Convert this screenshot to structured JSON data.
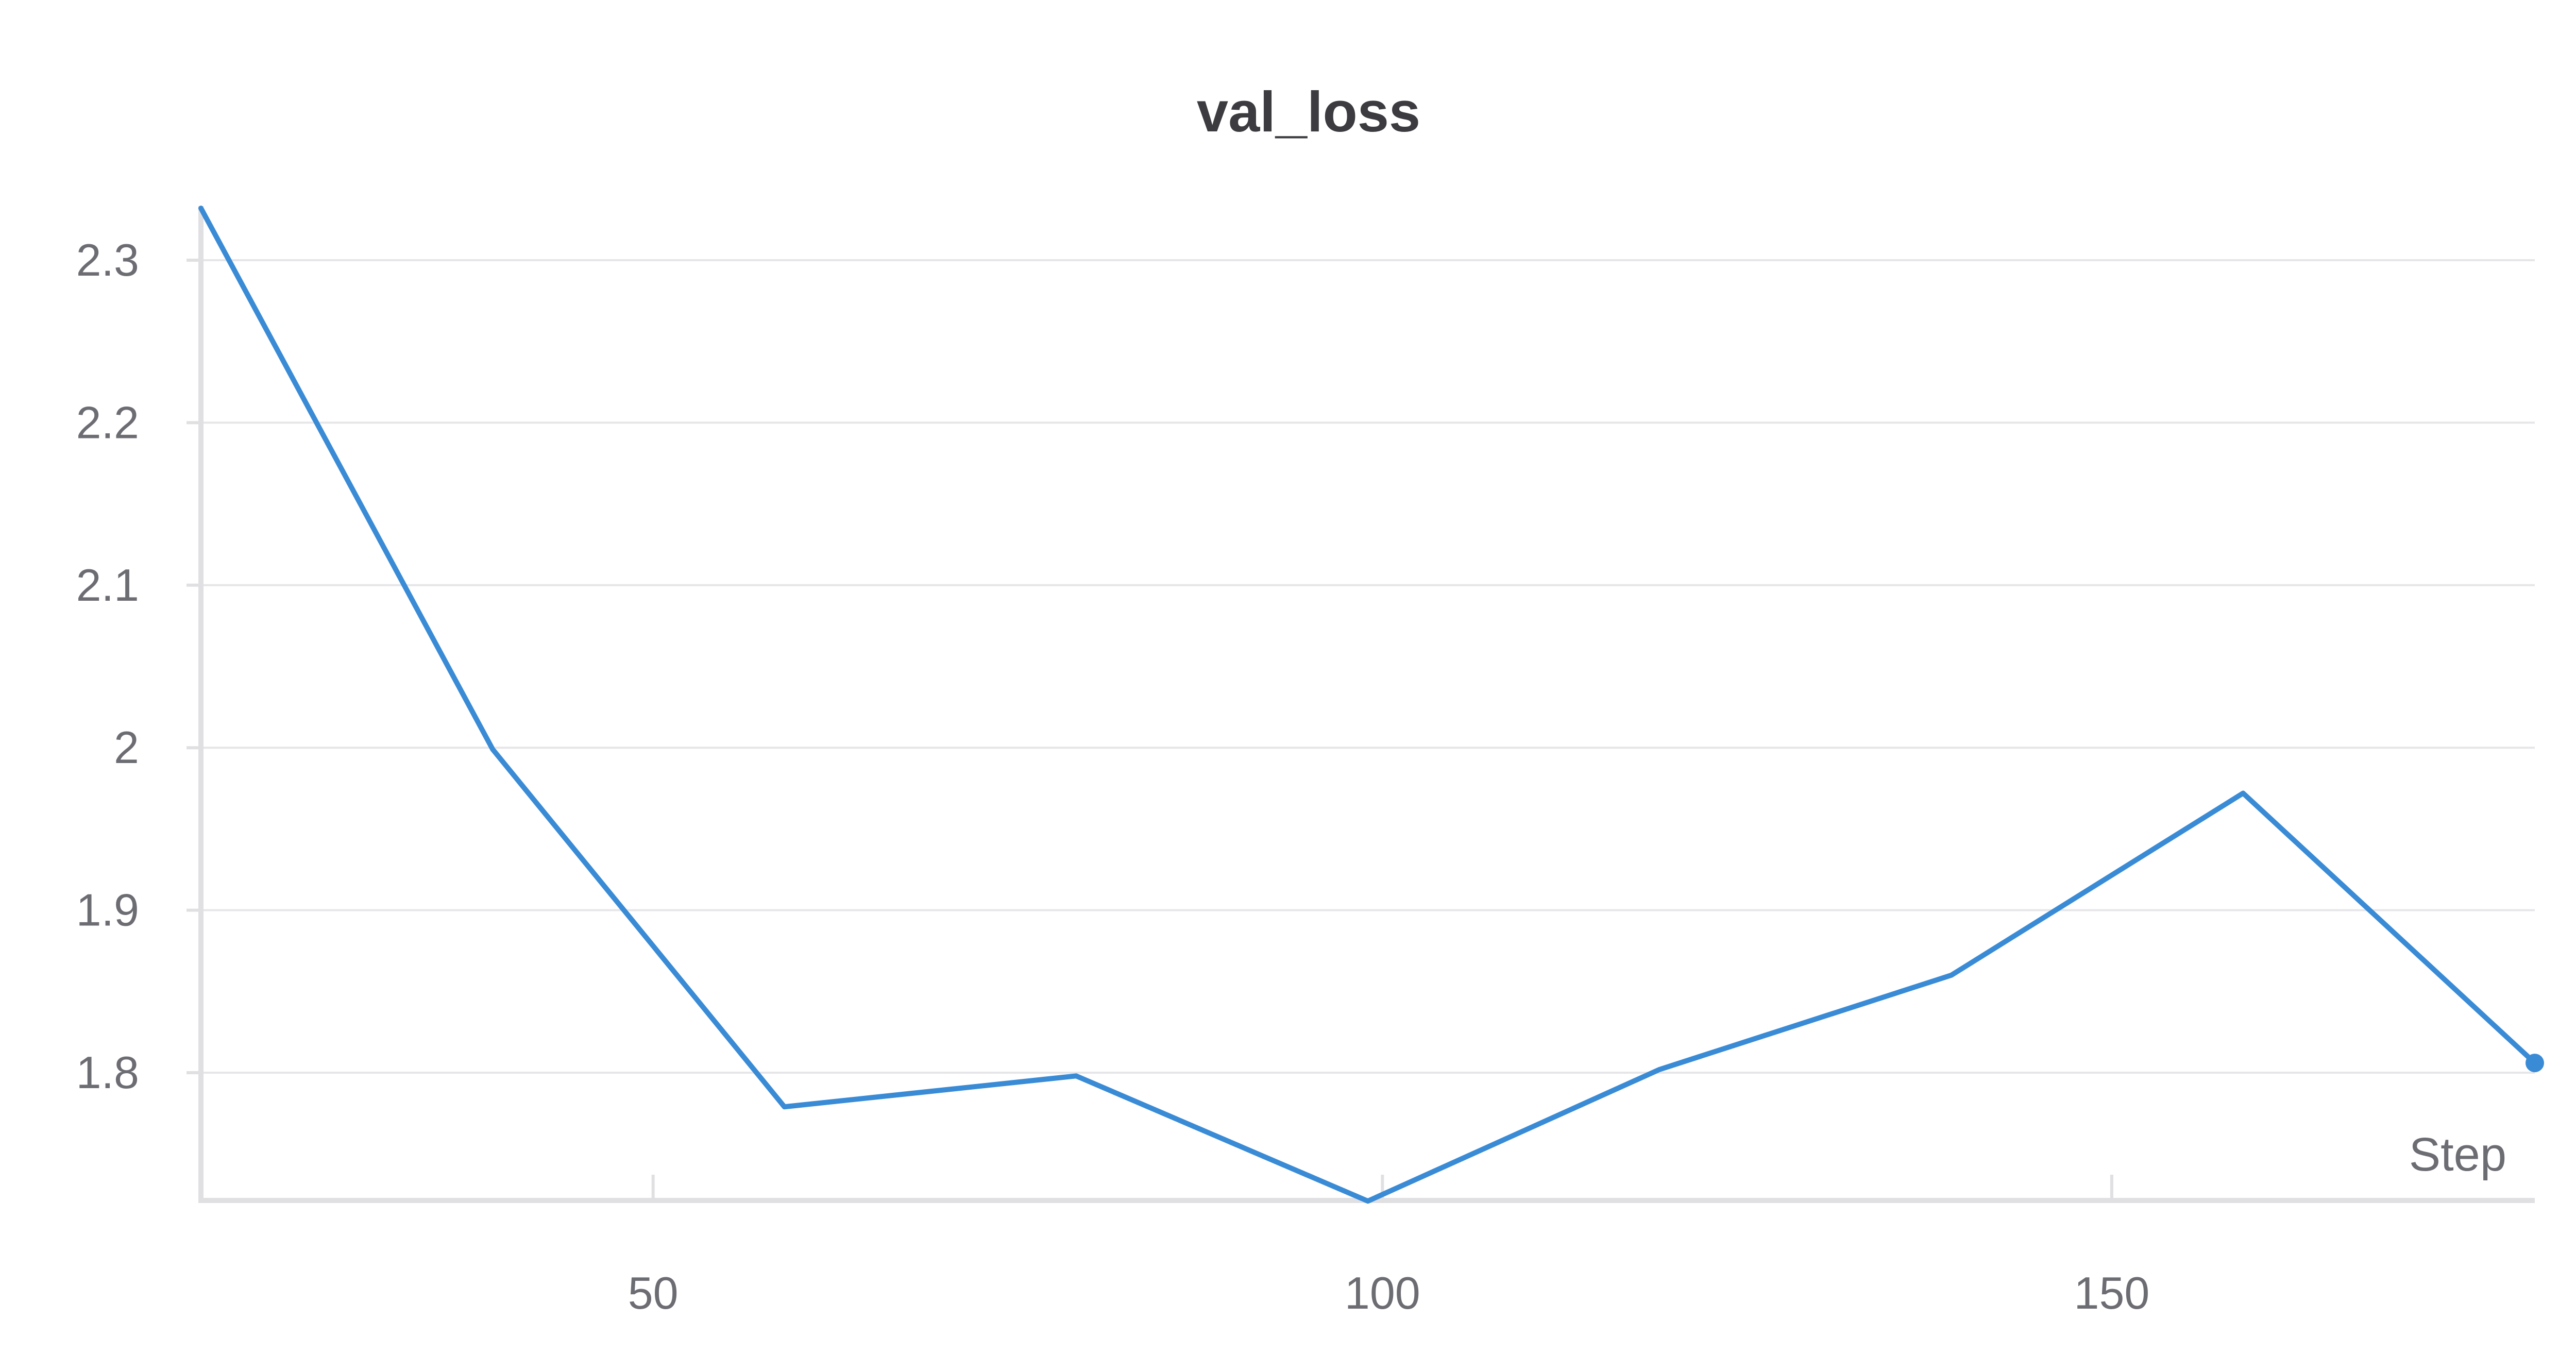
{
  "chart_data": {
    "type": "line",
    "title": "val_loss",
    "xlabel": "Step",
    "ylabel": "",
    "x": [
      19,
      39,
      59,
      79,
      99,
      119,
      139,
      159,
      179
    ],
    "series": [
      {
        "values": [
          2.332,
          1.999,
          1.779,
          1.798,
          1.721,
          1.802,
          1.86,
          1.972,
          1.806
        ]
      }
    ],
    "xlim": [
      19,
      179
    ],
    "ylim": [
      1.722,
      2.33
    ],
    "x_ticks": [
      50,
      100,
      150
    ],
    "y_ticks": [
      1.8,
      1.9,
      2,
      2.1,
      2.2,
      2.3
    ],
    "x_tick_labels": [
      "50",
      "100",
      "150"
    ],
    "y_tick_labels": [
      "1.8",
      "1.9",
      "2",
      "2.1",
      "2.2",
      "2.3"
    ],
    "grid": true,
    "line_color": "#3a8bd6"
  }
}
